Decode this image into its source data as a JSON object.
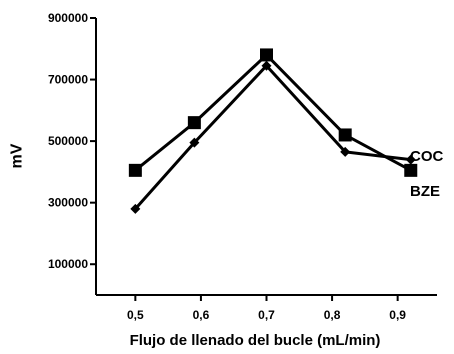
{
  "chart_data": {
    "type": "line",
    "title": "",
    "xlabel": "Flujo de llenado del bucle (mL/min)",
    "ylabel": "mV",
    "x_ticks": [
      "0,5",
      "0,6",
      "0,7",
      "0,8",
      "0,9"
    ],
    "y_ticks": [
      "100000",
      "300000",
      "500000",
      "700000",
      "900000"
    ],
    "xlim": [
      0.44,
      0.96
    ],
    "ylim": [
      0,
      900000
    ],
    "grid": false,
    "series": [
      {
        "name": "COC",
        "marker": "square",
        "x": [
          0.5,
          0.59,
          0.7,
          0.82,
          0.92
        ],
        "values": [
          405000,
          560000,
          780000,
          520000,
          405000
        ]
      },
      {
        "name": "BZE",
        "marker": "diamond",
        "x": [
          0.5,
          0.59,
          0.7,
          0.82,
          0.92
        ],
        "values": [
          280000,
          495000,
          745000,
          465000,
          440000
        ]
      }
    ]
  }
}
